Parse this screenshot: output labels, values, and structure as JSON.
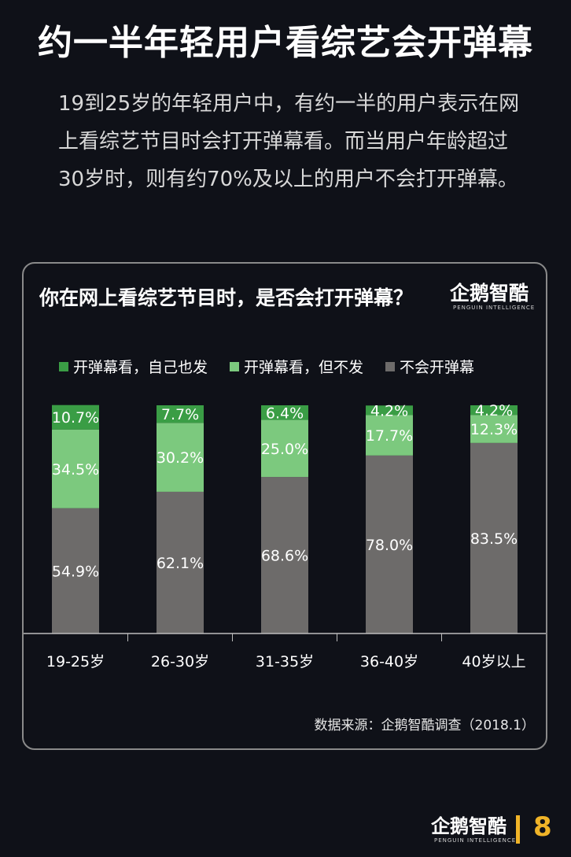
{
  "page": {
    "title": "约一半年轻用户看综艺会开弹幕",
    "intro": "19到25岁的年轻用户中，有约一半的用户表示在网上看综艺节目时会打开弹幕看。而当用户年龄超过30岁时，则有约70%及以上的用户不会打开弹幕。",
    "page_number": "8"
  },
  "brand": {
    "name": "企鹅智酷",
    "sub": "PENGUIN INTELLIGENCE"
  },
  "chart_data": {
    "type": "bar",
    "stacked": true,
    "percent": true,
    "title": "你在网上看综艺节目时，是否会打开弹幕？",
    "categories": [
      "19-25岁",
      "26-30岁",
      "31-35岁",
      "36-40岁",
      "40岁以上"
    ],
    "series": [
      {
        "name": "不会开弹幕",
        "color": "#6d6b6a",
        "values": [
          54.9,
          62.1,
          68.6,
          78.0,
          83.5
        ],
        "labels": [
          "54.9%",
          "62.1%",
          "68.6%",
          "78.0%",
          "83.5%"
        ]
      },
      {
        "name": "开弹幕看，但不发",
        "color": "#7cc97e",
        "values": [
          34.5,
          30.2,
          25.0,
          17.7,
          12.3
        ],
        "labels": [
          "34.5%",
          "30.2%",
          "25.0%",
          "17.7%",
          "12.3%"
        ]
      },
      {
        "name": "开弹幕看，自己也发",
        "color": "#3a9d45",
        "values": [
          10.7,
          7.7,
          6.4,
          4.2,
          4.2
        ],
        "labels": [
          "10.7%",
          "7.7%",
          "6.4%",
          "4.2%",
          "4.2%"
        ]
      }
    ],
    "legend_order": [
      2,
      1,
      0
    ],
    "legend_position": "top",
    "ylim": [
      0,
      100
    ],
    "grid": false,
    "source": "数据来源：企鹅智酷调查（2018.1）"
  }
}
